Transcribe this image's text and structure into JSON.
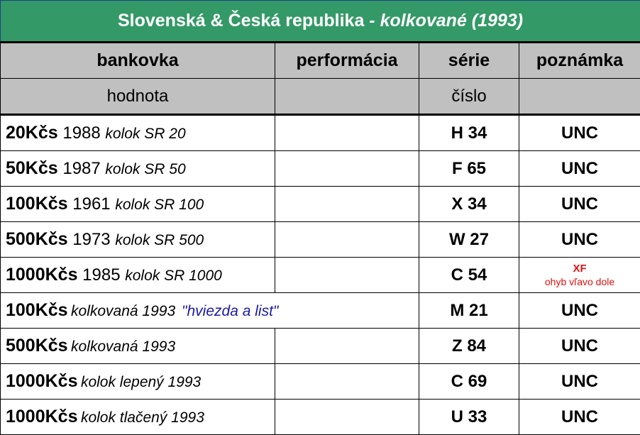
{
  "title": {
    "main": "Slovenská & Česká republika",
    "italic": " - kolkované (1993)"
  },
  "headers": [
    "bankovka",
    "performácia",
    "série",
    "poznámka"
  ],
  "subheaders": [
    "hodnota",
    "",
    "číslo",
    ""
  ],
  "rows": [
    {
      "value": "20Kčs",
      "year": " 1988 ",
      "desc": "kolok SR 20",
      "serial": "H 34",
      "note": "UNC"
    },
    {
      "value": "50Kčs",
      "year": " 1987 ",
      "desc": "kolok SR 50",
      "serial": "F 65",
      "note": "UNC"
    },
    {
      "value": "100Kčs",
      "year": " 1961 ",
      "desc": "kolok SR 100",
      "serial": "X 34",
      "note": "UNC"
    },
    {
      "value": "500Kčs",
      "year": " 1973 ",
      "desc": "kolok SR 500",
      "serial": "W 27",
      "note": "UNC"
    },
    {
      "value": "1000Kčs",
      "year": " 1985 ",
      "desc": "kolok SR 1000",
      "serial": "C 54",
      "note": "XF",
      "note_detail": "ohyb vľavo dole"
    },
    {
      "value": "100Kčs",
      "year": "",
      "desc": "kolkovaná 1993",
      "extra": "\"hviezda a list\"",
      "serial": "M 21",
      "note": "UNC"
    },
    {
      "value": "500Kčs",
      "year": "",
      "desc": "kolkovaná 1993",
      "serial": "Z 84",
      "note": "UNC"
    },
    {
      "value": "1000Kčs",
      "year": "",
      "desc": "kolok lepený 1993",
      "serial": "C 69",
      "note": "UNC"
    },
    {
      "value": "1000Kčs",
      "year": "",
      "desc": "kolok tlačený 1993",
      "serial": "U 33",
      "note": "UNC"
    }
  ],
  "colors": {
    "title_bg": "#339966",
    "header_bg": "#c0c0c0",
    "xf": "#e01010",
    "quote": "#1a1aaa"
  }
}
